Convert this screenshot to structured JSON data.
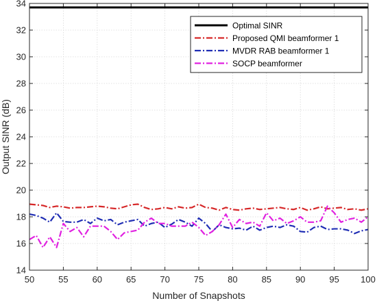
{
  "chart_data": {
    "type": "line",
    "xlabel": "Number of Snapshots",
    "ylabel": "Output SINR (dB)",
    "xlim": [
      50,
      100
    ],
    "ylim": [
      14,
      34
    ],
    "xticks": [
      50,
      55,
      60,
      65,
      70,
      75,
      80,
      85,
      90,
      95,
      100
    ],
    "yticks": [
      14,
      16,
      18,
      20,
      22,
      24,
      26,
      28,
      30,
      32,
      34
    ],
    "grid": true,
    "legend_position": "top-right",
    "x": [
      50,
      51,
      52,
      53,
      54,
      55,
      56,
      57,
      58,
      59,
      60,
      61,
      62,
      63,
      64,
      65,
      66,
      67,
      68,
      69,
      70,
      71,
      72,
      73,
      74,
      75,
      76,
      77,
      78,
      79,
      80,
      81,
      82,
      83,
      84,
      85,
      86,
      87,
      88,
      89,
      90,
      91,
      92,
      93,
      94,
      95,
      96,
      97,
      98,
      99,
      100
    ],
    "series": [
      {
        "name": "Optimal SINR",
        "color": "#000000",
        "style": "solid",
        "values": [
          33.7,
          33.7,
          33.7,
          33.7,
          33.7,
          33.7,
          33.7,
          33.7,
          33.7,
          33.7,
          33.7,
          33.7,
          33.7,
          33.7,
          33.7,
          33.7,
          33.7,
          33.7,
          33.7,
          33.7,
          33.7,
          33.7,
          33.7,
          33.7,
          33.7,
          33.7,
          33.7,
          33.7,
          33.7,
          33.7,
          33.7,
          33.7,
          33.7,
          33.7,
          33.7,
          33.7,
          33.7,
          33.7,
          33.7,
          33.7,
          33.7,
          33.7,
          33.7,
          33.7,
          33.7,
          33.7,
          33.7,
          33.7,
          33.7,
          33.7,
          33.7
        ]
      },
      {
        "name": "Proposed QMI beamformer 1",
        "color": "#d62728",
        "style": "dashdot",
        "values": [
          18.95,
          18.9,
          18.85,
          18.7,
          18.8,
          18.75,
          18.65,
          18.7,
          18.7,
          18.75,
          18.8,
          18.75,
          18.65,
          18.6,
          18.75,
          18.9,
          18.95,
          18.7,
          18.55,
          18.6,
          18.7,
          18.6,
          18.75,
          18.65,
          18.7,
          18.95,
          18.7,
          18.65,
          18.5,
          18.7,
          18.55,
          18.5,
          18.6,
          18.65,
          18.55,
          18.6,
          18.65,
          18.7,
          18.6,
          18.55,
          18.7,
          18.5,
          18.6,
          18.75,
          18.6,
          18.65,
          18.7,
          18.55,
          18.6,
          18.5,
          18.6
        ]
      },
      {
        "name": "MVDR RAB beamformer 1",
        "color": "#1f2db4",
        "style": "dashdot",
        "values": [
          18.2,
          18.1,
          17.9,
          17.6,
          18.3,
          17.65,
          17.6,
          17.6,
          17.8,
          17.5,
          17.9,
          17.7,
          17.8,
          17.4,
          17.6,
          17.7,
          17.8,
          17.3,
          17.5,
          17.6,
          17.2,
          17.45,
          17.8,
          17.6,
          17.3,
          17.9,
          17.5,
          16.9,
          17.4,
          17.2,
          17.1,
          17.15,
          17.0,
          17.3,
          17.0,
          17.2,
          17.3,
          17.2,
          17.4,
          17.3,
          16.9,
          16.85,
          17.2,
          17.3,
          17.05,
          17.1,
          17.1,
          17.0,
          16.75,
          16.95,
          17.05
        ]
      },
      {
        "name": "SOCP beamformer",
        "color": "#e020e0",
        "style": "dashdot",
        "values": [
          16.3,
          16.6,
          15.7,
          16.5,
          15.7,
          17.5,
          16.9,
          17.2,
          16.5,
          17.3,
          17.3,
          17.3,
          16.9,
          16.3,
          16.8,
          16.9,
          17.0,
          17.6,
          17.9,
          17.5,
          17.5,
          17.3,
          17.3,
          17.3,
          17.6,
          17.2,
          16.6,
          16.9,
          17.4,
          18.2,
          17.2,
          17.8,
          17.5,
          17.6,
          17.3,
          18.3,
          17.7,
          17.9,
          17.5,
          17.7,
          18.0,
          17.6,
          17.6,
          17.7,
          18.8,
          18.3,
          17.6,
          17.8,
          17.9,
          17.6,
          18.0
        ]
      }
    ]
  }
}
